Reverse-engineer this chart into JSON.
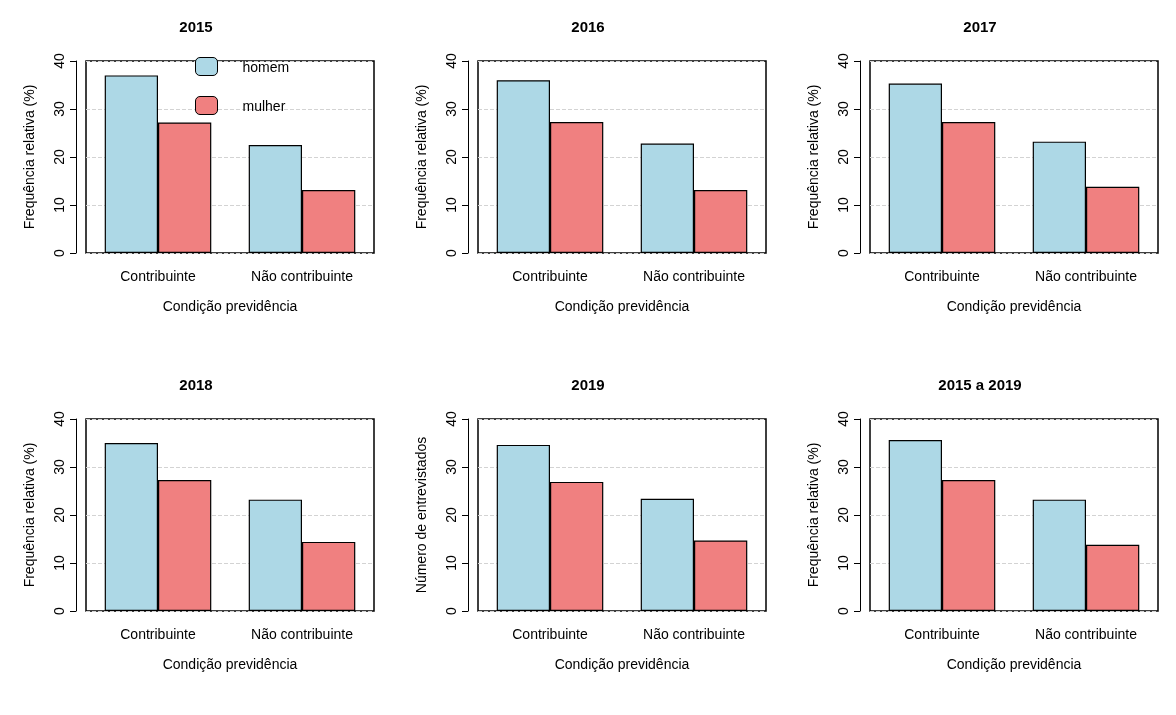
{
  "chart_data": [
    {
      "type": "bar",
      "title": "2015",
      "xlabel": "Condição previdência",
      "ylabel": "Frequência relativa (%)",
      "categories": [
        "Contribuinte",
        "Não contribuinte"
      ],
      "series": [
        {
          "name": "homem",
          "color": "#add8e6",
          "values": [
            37.0,
            22.5
          ]
        },
        {
          "name": "mulher",
          "color": "#f08080",
          "values": [
            27.2,
            13.1
          ]
        }
      ],
      "ylim": [
        0,
        40
      ],
      "yticks": [
        0,
        10,
        20,
        30,
        40
      ],
      "grid": "y",
      "legend": "top"
    },
    {
      "type": "bar",
      "title": "2016",
      "xlabel": "Condição previdência",
      "ylabel": "Frequência relativa (%)",
      "categories": [
        "Contribuinte",
        "Não contribuinte"
      ],
      "series": [
        {
          "color": "#add8e6",
          "values": [
            36.0,
            22.8
          ]
        },
        {
          "color": "#f08080",
          "values": [
            27.3,
            13.1
          ]
        }
      ],
      "ylim": [
        0,
        40
      ],
      "yticks": [
        0,
        10,
        20,
        30,
        40
      ],
      "grid": "y"
    },
    {
      "type": "bar",
      "title": "2017",
      "xlabel": "Condição previdência",
      "ylabel": "Frequência relativa (%)",
      "categories": [
        "Contribuinte",
        "Não contribuinte"
      ],
      "series": [
        {
          "color": "#add8e6",
          "values": [
            35.3,
            23.2
          ]
        },
        {
          "color": "#f08080",
          "values": [
            27.3,
            13.8
          ]
        }
      ],
      "ylim": [
        0,
        40
      ],
      "yticks": [
        0,
        10,
        20,
        30,
        40
      ],
      "grid": "y"
    },
    {
      "type": "bar",
      "title": "2018",
      "xlabel": "Condição previdência",
      "ylabel": "Frequência relativa (%)",
      "categories": [
        "Contribuinte",
        "Não contribuinte"
      ],
      "series": [
        {
          "color": "#add8e6",
          "values": [
            35.0,
            23.2
          ]
        },
        {
          "color": "#f08080",
          "values": [
            27.3,
            14.4
          ]
        }
      ],
      "ylim": [
        0,
        40
      ],
      "yticks": [
        0,
        10,
        20,
        30,
        40
      ],
      "grid": "y"
    },
    {
      "type": "bar",
      "title": "2019",
      "xlabel": "Condição previdência",
      "ylabel": "Número de entrevistados",
      "categories": [
        "Contribuinte",
        "Não contribuinte"
      ],
      "series": [
        {
          "color": "#add8e6",
          "values": [
            34.6,
            23.4
          ]
        },
        {
          "color": "#f08080",
          "values": [
            26.9,
            14.7
          ]
        }
      ],
      "ylim": [
        0,
        40
      ],
      "yticks": [
        0,
        10,
        20,
        30,
        40
      ],
      "grid": "y"
    },
    {
      "type": "bar",
      "title": "2015 a 2019",
      "xlabel": "Condição previdência",
      "ylabel": "Frequência relativa (%)",
      "categories": [
        "Contribuinte",
        "Não contribuinte"
      ],
      "series": [
        {
          "color": "#add8e6",
          "values": [
            35.6,
            23.2
          ]
        },
        {
          "color": "#f08080",
          "values": [
            27.3,
            13.8
          ]
        }
      ],
      "ylim": [
        0,
        40
      ],
      "yticks": [
        0,
        10,
        20,
        30,
        40
      ],
      "grid": "y"
    }
  ]
}
